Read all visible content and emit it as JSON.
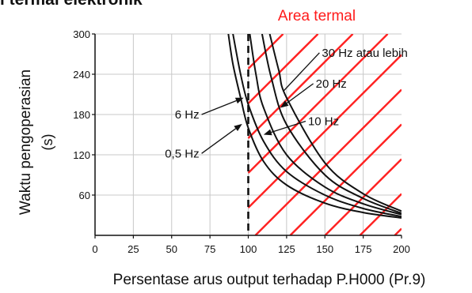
{
  "header": {
    "partial_title": "l termal elektronik"
  },
  "chart_data": {
    "type": "line",
    "title": "",
    "xlabel": "Persentase arus output terhadap P.H000 (Pr.9)",
    "ylabel": "Waktu pengoperasian",
    "ylabel_unit": "(s)",
    "xlim": [
      0,
      200
    ],
    "ylim": [
      0,
      300
    ],
    "x_ticks": [
      0,
      25,
      50,
      75,
      100,
      125,
      150,
      175,
      200
    ],
    "y_ticks": [
      60,
      120,
      180,
      240,
      300
    ],
    "grid": true,
    "thermal_area": {
      "label": "Area termal",
      "x_start": 100,
      "x_end": 200,
      "color": "#ff2020"
    },
    "boundary_x": 100,
    "series": [
      {
        "name": "0,5 Hz",
        "x": [
          87,
          90,
          95,
          100,
          110,
          125,
          150,
          175,
          200
        ],
        "y": [
          300,
          255,
          205,
          160,
          110,
          75,
          48,
          34,
          26
        ]
      },
      {
        "name": "6 Hz",
        "x": [
          90,
          95,
          100,
          110,
          125,
          150,
          175,
          200
        ],
        "y": [
          300,
          240,
          195,
          140,
          95,
          60,
          40,
          28
        ]
      },
      {
        "name": "10 Hz",
        "x": [
          101,
          105,
          110,
          125,
          150,
          175,
          200
        ],
        "y": [
          300,
          240,
          190,
          120,
          72,
          47,
          31
        ]
      },
      {
        "name": "20 Hz",
        "x": [
          109,
          115,
          125,
          150,
          175,
          200
        ],
        "y": [
          300,
          235,
          165,
          90,
          55,
          33
        ]
      },
      {
        "name": "30 Hz atau lebih",
        "x": [
          114,
          120,
          125,
          150,
          175,
          200
        ],
        "y": [
          300,
          245,
          205,
          108,
          62,
          36
        ]
      }
    ],
    "annotations": [
      {
        "text": "30 Hz atau lebih",
        "series": "30 Hz atau lebih",
        "target_x": 123,
        "target_y": 215,
        "text_x": 148,
        "text_y": 272,
        "anchor": "start",
        "arrow": false
      },
      {
        "text": "20 Hz",
        "series": "20 Hz",
        "target_x": 121,
        "target_y": 190,
        "text_x": 144,
        "text_y": 226,
        "anchor": "start",
        "arrow": true
      },
      {
        "text": "10 Hz",
        "series": "10 Hz",
        "target_x": 110,
        "target_y": 150,
        "text_x": 139,
        "text_y": 170,
        "anchor": "start",
        "arrow": true
      },
      {
        "text": "6 Hz",
        "series": "6 Hz",
        "target_x": 97,
        "target_y": 205,
        "text_x": 68,
        "text_y": 180,
        "anchor": "end",
        "arrow": true
      },
      {
        "text": "0,5 Hz",
        "series": "0,5 Hz",
        "target_x": 96,
        "target_y": 166,
        "text_x": 68,
        "text_y": 122,
        "anchor": "end",
        "arrow": true
      }
    ]
  }
}
